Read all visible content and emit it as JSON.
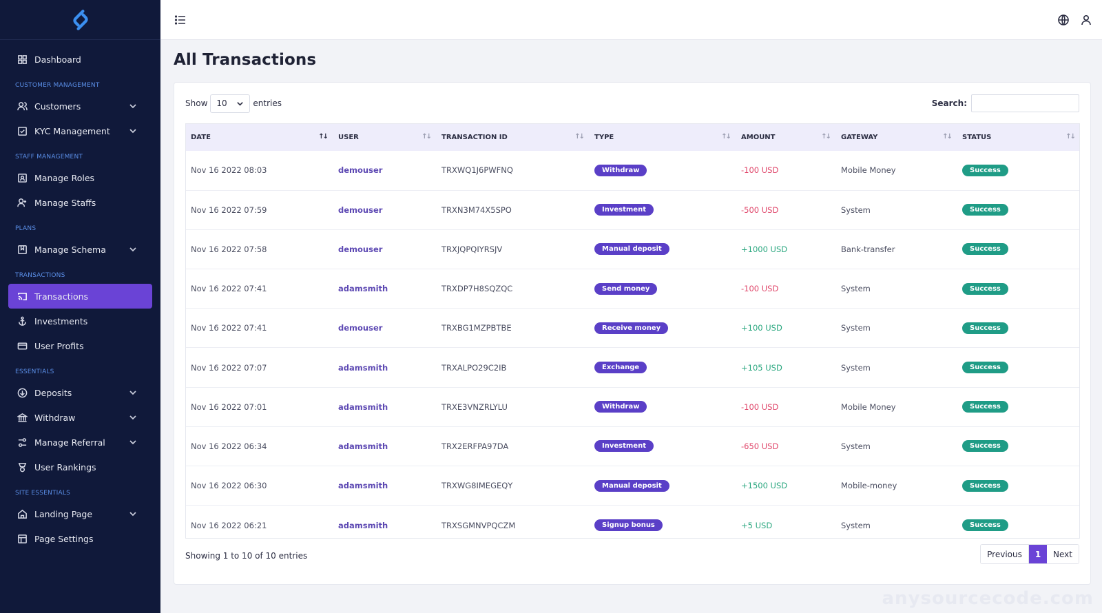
{
  "sidebar": {
    "sections": {
      "customer": "CUSTOMER MANAGEMENT",
      "staff": "STAFF MANAGEMENT",
      "plans": "PLANS",
      "transactions": "TRANSACTIONS",
      "essentials": "ESSENTIALS",
      "site": "SITE ESSENTIALS"
    },
    "items": {
      "dashboard": "Dashboard",
      "customers": "Customers",
      "kyc": "KYC Management",
      "roles": "Manage Roles",
      "staffs": "Manage Staffs",
      "schema": "Manage Schema",
      "transactions": "Transactions",
      "investments": "Investments",
      "profits": "User Profits",
      "deposits": "Deposits",
      "withdraw": "Withdraw",
      "referral": "Manage Referral",
      "rankings": "User Rankings",
      "landing": "Landing Page",
      "settings": "Page Settings"
    }
  },
  "page": {
    "title": "All Transactions"
  },
  "controls": {
    "show_label": "Show",
    "entries_value": "10",
    "entries_label": "entries",
    "search_label": "Search:",
    "search_value": ""
  },
  "table": {
    "columns": [
      "DATE",
      "USER",
      "TRANSACTION ID",
      "TYPE",
      "AMOUNT",
      "GATEWAY",
      "STATUS"
    ],
    "rows": [
      {
        "date": "Nov 16 2022 08:03",
        "user": "demouser",
        "txid": "TRXWQ1J6PWFNQ",
        "type": "Withdraw",
        "amount": "-100 USD",
        "gateway": "Mobile Money",
        "status": "Success"
      },
      {
        "date": "Nov 16 2022 07:59",
        "user": "demouser",
        "txid": "TRXN3M74X5SPO",
        "type": "Investment",
        "amount": "-500 USD",
        "gateway": "System",
        "status": "Success"
      },
      {
        "date": "Nov 16 2022 07:58",
        "user": "demouser",
        "txid": "TRXJQPQIYRSJV",
        "type": "Manual deposit",
        "amount": "+1000 USD",
        "gateway": "Bank-transfer",
        "status": "Success"
      },
      {
        "date": "Nov 16 2022 07:41",
        "user": "adamsmith",
        "txid": "TRXDP7H8SQZQC",
        "type": "Send money",
        "amount": "-100 USD",
        "gateway": "System",
        "status": "Success"
      },
      {
        "date": "Nov 16 2022 07:41",
        "user": "demouser",
        "txid": "TRXBG1MZPBTBE",
        "type": "Receive money",
        "amount": "+100 USD",
        "gateway": "System",
        "status": "Success"
      },
      {
        "date": "Nov 16 2022 07:07",
        "user": "adamsmith",
        "txid": "TRXALPO29C2IB",
        "type": "Exchange",
        "amount": "+105 USD",
        "gateway": "System",
        "status": "Success"
      },
      {
        "date": "Nov 16 2022 07:01",
        "user": "adamsmith",
        "txid": "TRXE3VNZRLYLU",
        "type": "Withdraw",
        "amount": "-100 USD",
        "gateway": "Mobile Money",
        "status": "Success"
      },
      {
        "date": "Nov 16 2022 06:34",
        "user": "adamsmith",
        "txid": "TRX2ERFPA97DA",
        "type": "Investment",
        "amount": "-650 USD",
        "gateway": "System",
        "status": "Success"
      },
      {
        "date": "Nov 16 2022 06:30",
        "user": "adamsmith",
        "txid": "TRXWG8IMEGEQY",
        "type": "Manual deposit",
        "amount": "+1500 USD",
        "gateway": "Mobile-money",
        "status": "Success"
      },
      {
        "date": "Nov 16 2022 06:21",
        "user": "adamsmith",
        "txid": "TRXSGMNVPQCZM",
        "type": "Signup bonus",
        "amount": "+5 USD",
        "gateway": "System",
        "status": "Success"
      }
    ]
  },
  "footer": {
    "info": "Showing 1 to 10 of 10 entries",
    "prev": "Previous",
    "current": "1",
    "next": "Next"
  },
  "watermark": "anysourcecode.com",
  "colors": {
    "sidebar_bg": "#10193a",
    "accent": "#6a43d6",
    "type_badge": "#5a3fc7",
    "status_success": "#1f9c86",
    "amount_negative": "#e0466a",
    "amount_positive": "#2aa77f"
  }
}
